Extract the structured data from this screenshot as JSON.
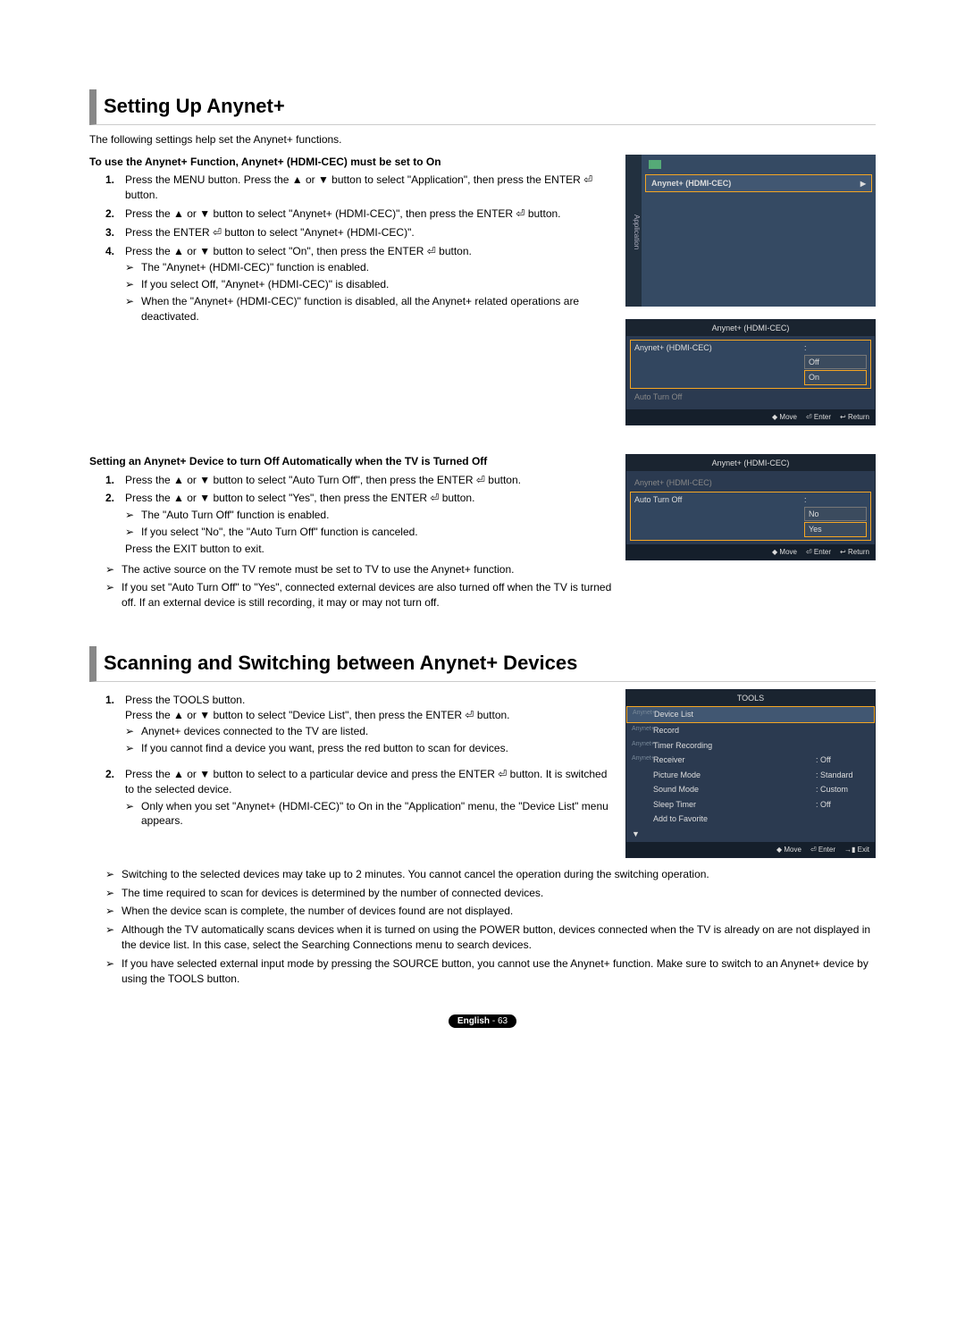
{
  "sections": {
    "setup": {
      "title": "Setting Up Anynet+",
      "intro": "The following settings help set the Anynet+ functions.",
      "sub1_heading": "To use the Anynet+ Function, Anynet+ (HDMI-CEC) must be set to On",
      "steps1": [
        "Press the MENU button. Press the ▲ or ▼ button to select \"Application\", then press the ENTER ⏎ button.",
        "Press the ▲ or ▼ button to select \"Anynet+ (HDMI-CEC)\", then press the ENTER ⏎ button.",
        "Press the ENTER ⏎ button to select \"Anynet+ (HDMI-CEC)\".",
        "Press the ▲ or ▼ button to select \"On\", then press the ENTER ⏎ button."
      ],
      "bullets1": [
        "The \"Anynet+ (HDMI-CEC)\" function is enabled.",
        "If you select Off, \"Anynet+ (HDMI-CEC)\" is disabled.",
        "When the \"Anynet+ (HDMI-CEC)\" function is disabled, all the Anynet+ related operations are deactivated."
      ],
      "sub2_heading": "Setting an Anynet+ Device to turn Off Automatically when the TV is Turned Off",
      "steps2a": [
        "Press the ▲ or ▼ button to select \"Auto Turn Off\", then press the ENTER ⏎ button.",
        "Press the ▲ or ▼ button to select \"Yes\", then press the ENTER ⏎ button."
      ],
      "bullets2": [
        "The \"Auto Turn Off\" function is enabled.",
        "If you select \"No\", the \"Auto Turn Off\" function is canceled."
      ],
      "exit_line": "Press the EXIT button to exit.",
      "notes": [
        "The active source on the TV remote must be set to TV to use the Anynet+ function.",
        "If you set \"Auto Turn Off\" to \"Yes\", connected external devices are also turned off when the TV is turned off. If an external device is still recording, it may or may not turn off."
      ]
    },
    "scan": {
      "title": "Scanning and Switching between Anynet+ Devices",
      "steps": [
        "Press the TOOLS button.\nPress the ▲ or ▼ button to select \"Device List\", then press the ENTER ⏎ button.",
        "Press the ▲ or ▼ button to select to a particular device and press the ENTER ⏎ button. It is switched to the selected device."
      ],
      "bullets_step1": [
        "Anynet+ devices connected to the TV are listed.",
        "If you cannot find a device you want, press the red button to scan for devices."
      ],
      "bullets_step2": [
        "Only when you set \"Anynet+ (HDMI-CEC)\" to On in the \"Application\" menu, the \"Device List\" menu appears."
      ],
      "notes": [
        "Switching to the selected devices may take up to 2 minutes. You cannot cancel the operation during the switching operation.",
        "The time required to scan for devices is determined by the number of connected devices.",
        "When the device scan is complete, the number of devices found are not displayed.",
        "Although the TV automatically scans devices when it is turned on using the POWER button, devices connected when the TV is already on are not displayed in the device list. In this case, select the Searching Connections menu to search devices.",
        "If you have selected external input mode by pressing the SOURCE button, you cannot use the Anynet+ function. Make sure to switch to an Anynet+ device by using the TOOLS button."
      ]
    }
  },
  "menus": {
    "app_side": "Application",
    "app_item": "Anynet+ (HDMI-CEC)",
    "osd1": {
      "title": "Anynet+ (HDMI-CEC)",
      "row1_label": "Anynet+ (HDMI-CEC)",
      "row2_label": "Auto Turn Off",
      "opt_off": "Off",
      "opt_on": "On"
    },
    "osd2": {
      "title": "Anynet+ (HDMI-CEC)",
      "row1_label": "Anynet+ (HDMI-CEC)",
      "row2_label": "Auto Turn Off",
      "opt_no": "No",
      "opt_yes": "Yes"
    },
    "footer": {
      "move": "Move",
      "enter": "Enter",
      "return": "Return",
      "exit": "Exit"
    },
    "tools": {
      "title": "TOOLS",
      "rows": [
        {
          "label": "Device List",
          "val": "",
          "tag": true,
          "sel": true
        },
        {
          "label": "Record",
          "val": "",
          "tag": true
        },
        {
          "label": "Timer Recording",
          "val": "",
          "tag": true
        },
        {
          "label": "Receiver",
          "val": "Off",
          "tag": true
        },
        {
          "label": "Picture Mode",
          "val": "Standard"
        },
        {
          "label": "Sound Mode",
          "val": "Custom"
        },
        {
          "label": "Sleep Timer",
          "val": "Off"
        },
        {
          "label": "Add to Favorite",
          "val": ""
        }
      ]
    },
    "move_icon": "◆",
    "enter_icon": "⏎",
    "return_icon": "↩",
    "exit_icon": "→▮"
  },
  "page": {
    "lang": "English",
    "num": "63"
  }
}
